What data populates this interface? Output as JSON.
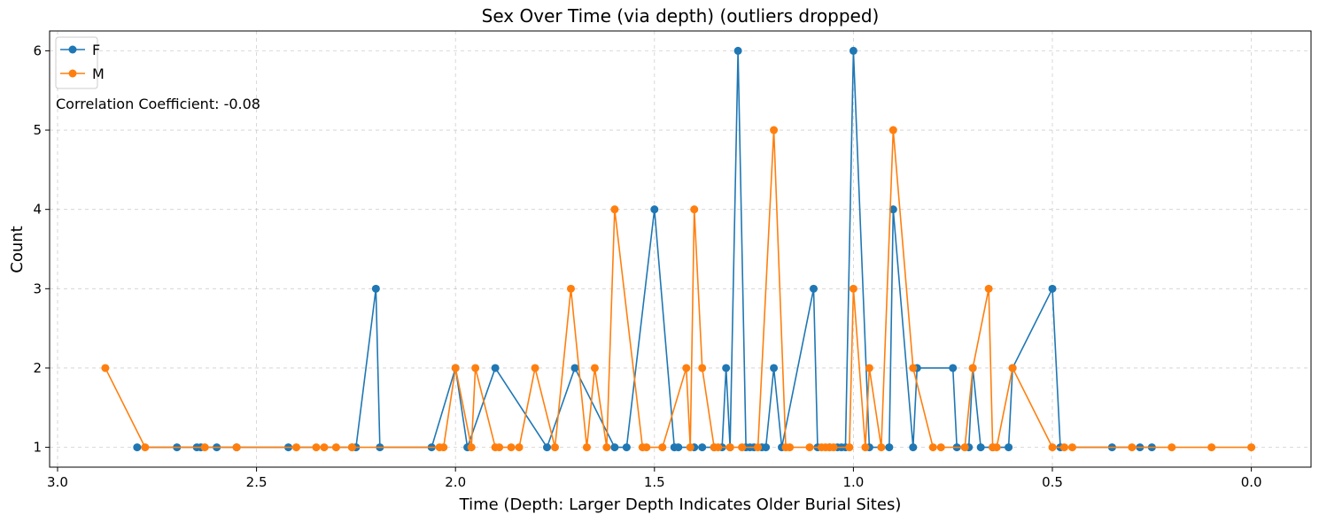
{
  "chart_data": {
    "type": "line",
    "title": "Sex Over Time (via depth) (outliers dropped)",
    "xlabel": "Time (Depth: Larger Depth Indicates Older Burial Sites)",
    "ylabel": "Count",
    "xlim": [
      3.02,
      -0.15
    ],
    "ylim": [
      0.75,
      6.25
    ],
    "x_inverted": true,
    "x_ticks": [
      3.0,
      2.5,
      2.0,
      1.5,
      1.0,
      0.5,
      0.0
    ],
    "x_tick_labels": [
      "3.0",
      "2.5",
      "2.0",
      "1.5",
      "1.0",
      "0.5",
      "0.0"
    ],
    "y_ticks": [
      1,
      2,
      3,
      4,
      5,
      6
    ],
    "y_tick_labels": [
      "1",
      "2",
      "3",
      "4",
      "5",
      "6"
    ],
    "grid": true,
    "legend_position": "top-left",
    "annotation": "Correlation Coefficient: -0.08",
    "series": [
      {
        "name": "F",
        "color": "#1f77b4",
        "points": [
          [
            2.8,
            1
          ],
          [
            2.7,
            1
          ],
          [
            2.65,
            1
          ],
          [
            2.64,
            1
          ],
          [
            2.6,
            1
          ],
          [
            2.55,
            1
          ],
          [
            2.42,
            1
          ],
          [
            2.26,
            1
          ],
          [
            2.25,
            1
          ],
          [
            2.2,
            3
          ],
          [
            2.19,
            1
          ],
          [
            2.06,
            1
          ],
          [
            2.0,
            2
          ],
          [
            1.97,
            1
          ],
          [
            1.9,
            2
          ],
          [
            1.77,
            1
          ],
          [
            1.7,
            2
          ],
          [
            1.6,
            1
          ],
          [
            1.57,
            1
          ],
          [
            1.5,
            4
          ],
          [
            1.45,
            1
          ],
          [
            1.44,
            1
          ],
          [
            1.4,
            1
          ],
          [
            1.38,
            1
          ],
          [
            1.35,
            1
          ],
          [
            1.33,
            1
          ],
          [
            1.32,
            2
          ],
          [
            1.31,
            1
          ],
          [
            1.29,
            6
          ],
          [
            1.27,
            1
          ],
          [
            1.26,
            1
          ],
          [
            1.25,
            1
          ],
          [
            1.23,
            1
          ],
          [
            1.22,
            1
          ],
          [
            1.2,
            2
          ],
          [
            1.18,
            1
          ],
          [
            1.1,
            3
          ],
          [
            1.09,
            1
          ],
          [
            1.06,
            1
          ],
          [
            1.04,
            1
          ],
          [
            1.03,
            1
          ],
          [
            1.02,
            1
          ],
          [
            1.0,
            6
          ],
          [
            0.96,
            1
          ],
          [
            0.91,
            1
          ],
          [
            0.9,
            4
          ],
          [
            0.85,
            1
          ],
          [
            0.84,
            2
          ],
          [
            0.75,
            2
          ],
          [
            0.74,
            1
          ],
          [
            0.71,
            1
          ],
          [
            0.7,
            2
          ],
          [
            0.68,
            1
          ],
          [
            0.65,
            1
          ],
          [
            0.61,
            1
          ],
          [
            0.6,
            2
          ],
          [
            0.5,
            3
          ],
          [
            0.48,
            1
          ],
          [
            0.35,
            1
          ],
          [
            0.28,
            1
          ],
          [
            0.25,
            1
          ]
        ]
      },
      {
        "name": "M",
        "color": "#ff7f0e",
        "points": [
          [
            2.88,
            2
          ],
          [
            2.78,
            1
          ],
          [
            2.63,
            1
          ],
          [
            2.55,
            1
          ],
          [
            2.4,
            1
          ],
          [
            2.35,
            1
          ],
          [
            2.33,
            1
          ],
          [
            2.3,
            1
          ],
          [
            2.26,
            1
          ],
          [
            2.04,
            1
          ],
          [
            2.03,
            1
          ],
          [
            2.0,
            2
          ],
          [
            1.96,
            1
          ],
          [
            1.95,
            2
          ],
          [
            1.9,
            1
          ],
          [
            1.89,
            1
          ],
          [
            1.86,
            1
          ],
          [
            1.84,
            1
          ],
          [
            1.8,
            2
          ],
          [
            1.75,
            1
          ],
          [
            1.71,
            3
          ],
          [
            1.67,
            1
          ],
          [
            1.65,
            2
          ],
          [
            1.62,
            1
          ],
          [
            1.6,
            4
          ],
          [
            1.53,
            1
          ],
          [
            1.52,
            1
          ],
          [
            1.48,
            1
          ],
          [
            1.42,
            2
          ],
          [
            1.41,
            1
          ],
          [
            1.4,
            4
          ],
          [
            1.38,
            2
          ],
          [
            1.35,
            1
          ],
          [
            1.34,
            1
          ],
          [
            1.31,
            1
          ],
          [
            1.28,
            1
          ],
          [
            1.24,
            1
          ],
          [
            1.2,
            5
          ],
          [
            1.17,
            1
          ],
          [
            1.16,
            1
          ],
          [
            1.11,
            1
          ],
          [
            1.08,
            1
          ],
          [
            1.07,
            1
          ],
          [
            1.06,
            1
          ],
          [
            1.05,
            1
          ],
          [
            1.01,
            1
          ],
          [
            1.0,
            3
          ],
          [
            0.97,
            1
          ],
          [
            0.96,
            2
          ],
          [
            0.93,
            1
          ],
          [
            0.9,
            5
          ],
          [
            0.85,
            2
          ],
          [
            0.8,
            1
          ],
          [
            0.78,
            1
          ],
          [
            0.72,
            1
          ],
          [
            0.7,
            2
          ],
          [
            0.66,
            3
          ],
          [
            0.65,
            1
          ],
          [
            0.64,
            1
          ],
          [
            0.6,
            2
          ],
          [
            0.5,
            1
          ],
          [
            0.47,
            1
          ],
          [
            0.45,
            1
          ],
          [
            0.3,
            1
          ],
          [
            0.2,
            1
          ],
          [
            0.1,
            1
          ],
          [
            0.0,
            1
          ]
        ]
      }
    ]
  }
}
